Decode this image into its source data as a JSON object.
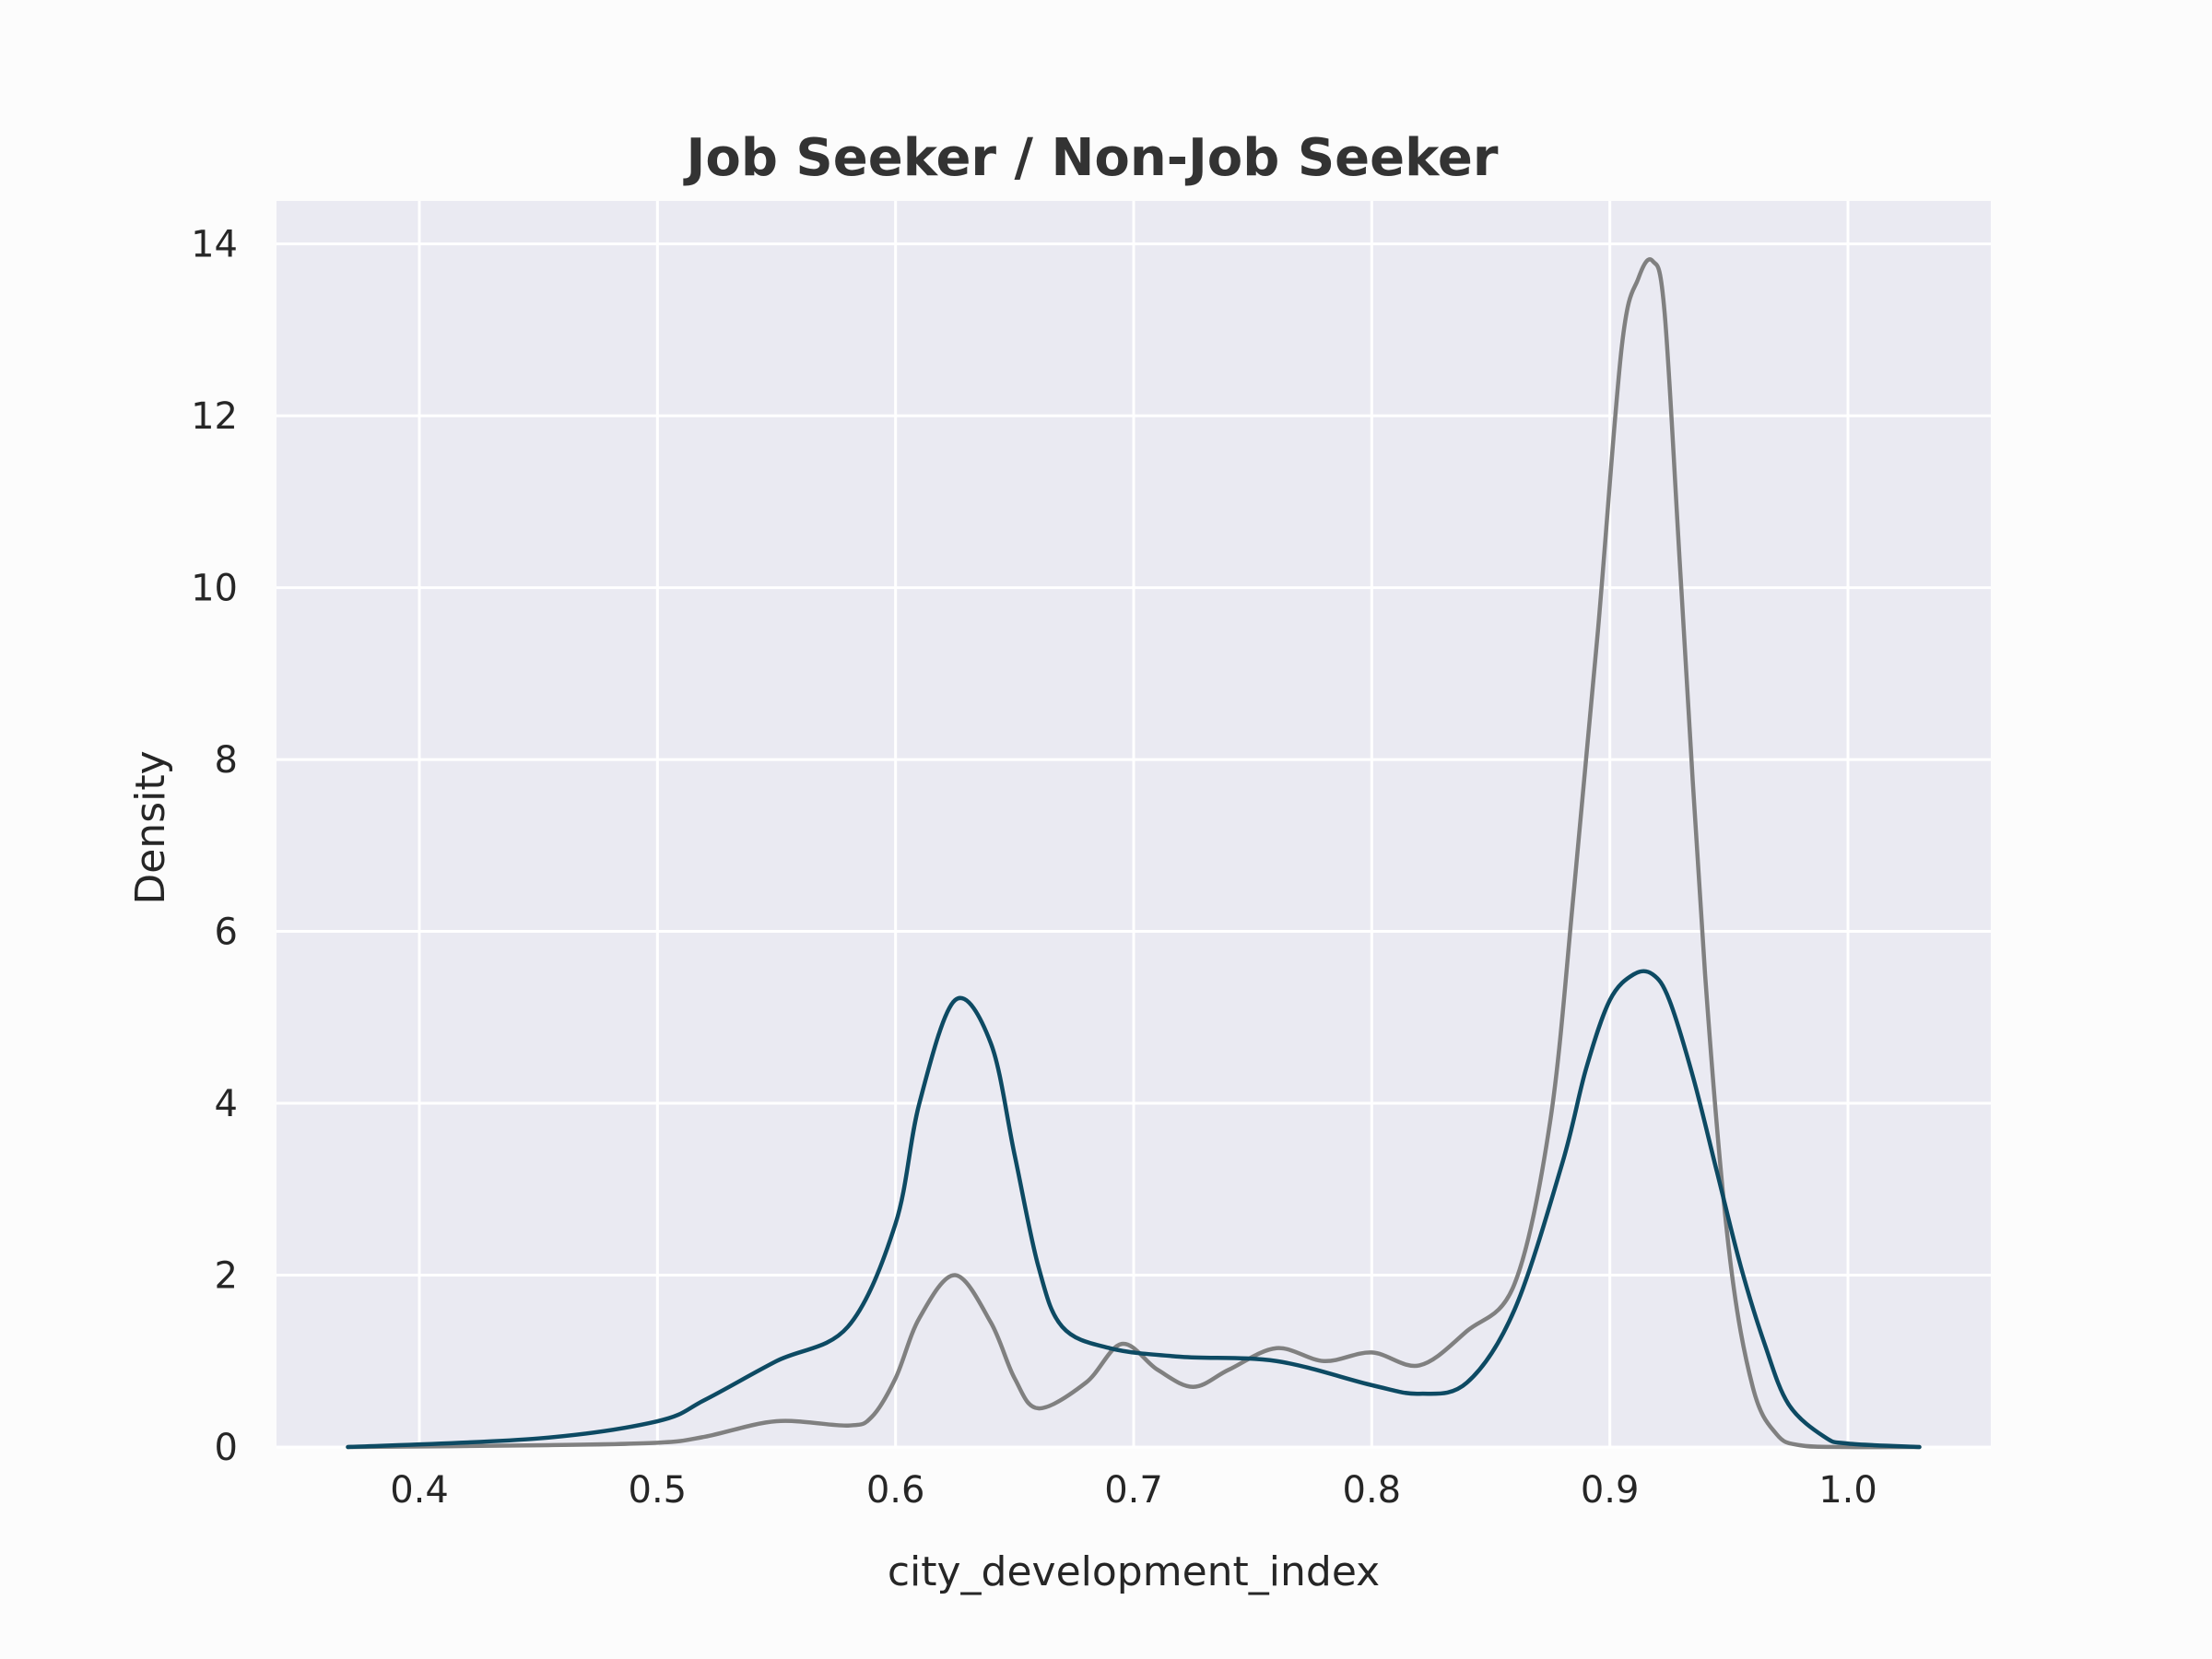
{
  "chart_data": {
    "type": "line",
    "title": "Job Seeker / Non-Job Seeker",
    "xlabel": "city_development_index",
    "ylabel": "Density",
    "xlim": [
      0.34,
      1.06
    ],
    "ylim": [
      0,
      14.5
    ],
    "xticks": [
      "0.4",
      "0.5",
      "0.6",
      "0.7",
      "0.8",
      "0.9",
      "1.0"
    ],
    "yticks": [
      "0",
      "2",
      "4",
      "6",
      "8",
      "10",
      "12",
      "14"
    ],
    "grid": true,
    "background": "#eaeaf2",
    "series": [
      {
        "color": "#808080",
        "x": [
          0.37,
          0.45,
          0.5,
          0.52,
          0.55,
          0.58,
          0.59,
          0.6,
          0.61,
          0.625,
          0.64,
          0.65,
          0.66,
          0.68,
          0.695,
          0.71,
          0.725,
          0.74,
          0.76,
          0.78,
          0.8,
          0.82,
          0.84,
          0.86,
          0.875,
          0.885,
          0.895,
          0.905,
          0.912,
          0.918,
          0.923,
          0.93,
          0.94,
          0.95,
          0.96,
          0.97,
          0.98,
          1.0,
          1.03
        ],
        "y": [
          0.0,
          0.02,
          0.05,
          0.12,
          0.3,
          0.25,
          0.35,
          0.8,
          1.5,
          2.0,
          1.45,
          0.8,
          0.45,
          0.75,
          1.2,
          0.9,
          0.7,
          0.9,
          1.15,
          1.0,
          1.1,
          0.95,
          1.35,
          1.9,
          3.8,
          6.5,
          9.5,
          12.8,
          13.6,
          13.8,
          13.2,
          10.0,
          5.5,
          2.3,
          0.7,
          0.15,
          0.02,
          0.0,
          0.0
        ]
      },
      {
        "color": "#0d4a63",
        "x": [
          0.37,
          0.45,
          0.5,
          0.52,
          0.55,
          0.58,
          0.6,
          0.61,
          0.625,
          0.64,
          0.65,
          0.66,
          0.67,
          0.69,
          0.72,
          0.76,
          0.8,
          0.82,
          0.84,
          0.86,
          0.88,
          0.89,
          0.9,
          0.91,
          0.918,
          0.925,
          0.935,
          0.945,
          0.955,
          0.965,
          0.975,
          0.99,
          1.0,
          1.03
        ],
        "y": [
          0.0,
          0.1,
          0.3,
          0.55,
          1.0,
          1.4,
          2.6,
          4.0,
          5.2,
          4.7,
          3.4,
          2.1,
          1.4,
          1.15,
          1.05,
          1.0,
          0.72,
          0.62,
          0.75,
          1.6,
          3.3,
          4.4,
          5.2,
          5.5,
          5.5,
          5.2,
          4.3,
          3.2,
          2.1,
          1.2,
          0.5,
          0.12,
          0.04,
          0.0
        ]
      }
    ]
  }
}
